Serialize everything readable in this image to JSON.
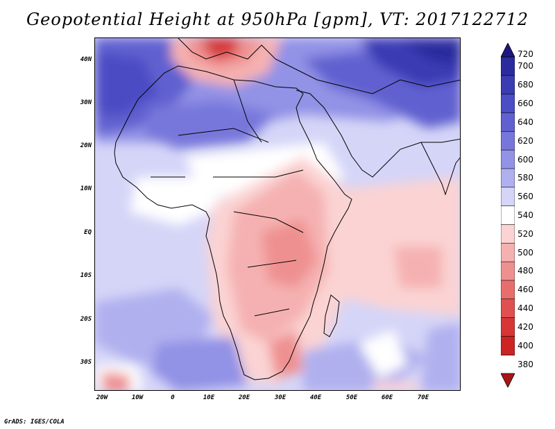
{
  "title": "Geopotential Height at 950hPa [gpm], VT: 2017122712",
  "credit": "GrADS: IGES/COLA",
  "map": {
    "lat_range": [
      -36,
      45
    ],
    "lon_range": [
      -22,
      80
    ],
    "lat_labels": [
      "40N",
      "30N",
      "20N",
      "10N",
      "EQ",
      "10S",
      "20S",
      "30S"
    ],
    "lon_labels": [
      "20W",
      "10W",
      "0",
      "10E",
      "20E",
      "30E",
      "40E",
      "50E",
      "60E",
      "70E"
    ]
  },
  "colorbar": {
    "levels": [
      "720",
      "700",
      "680",
      "660",
      "640",
      "620",
      "600",
      "580",
      "560",
      "540",
      "520",
      "500",
      "480",
      "460",
      "440",
      "420",
      "400",
      "380"
    ],
    "colors": [
      "#1d1880",
      "#2c2b9e",
      "#3b3bb4",
      "#4c4cc4",
      "#6060d0",
      "#7777db",
      "#9292e6",
      "#b0b0ef",
      "#d5d5f8",
      "#ffffff",
      "#fbd3d3",
      "#f5b1b1",
      "#ef9090",
      "#e86e6e",
      "#e05050",
      "#d63636",
      "#cc2424",
      "#a81616"
    ]
  }
}
